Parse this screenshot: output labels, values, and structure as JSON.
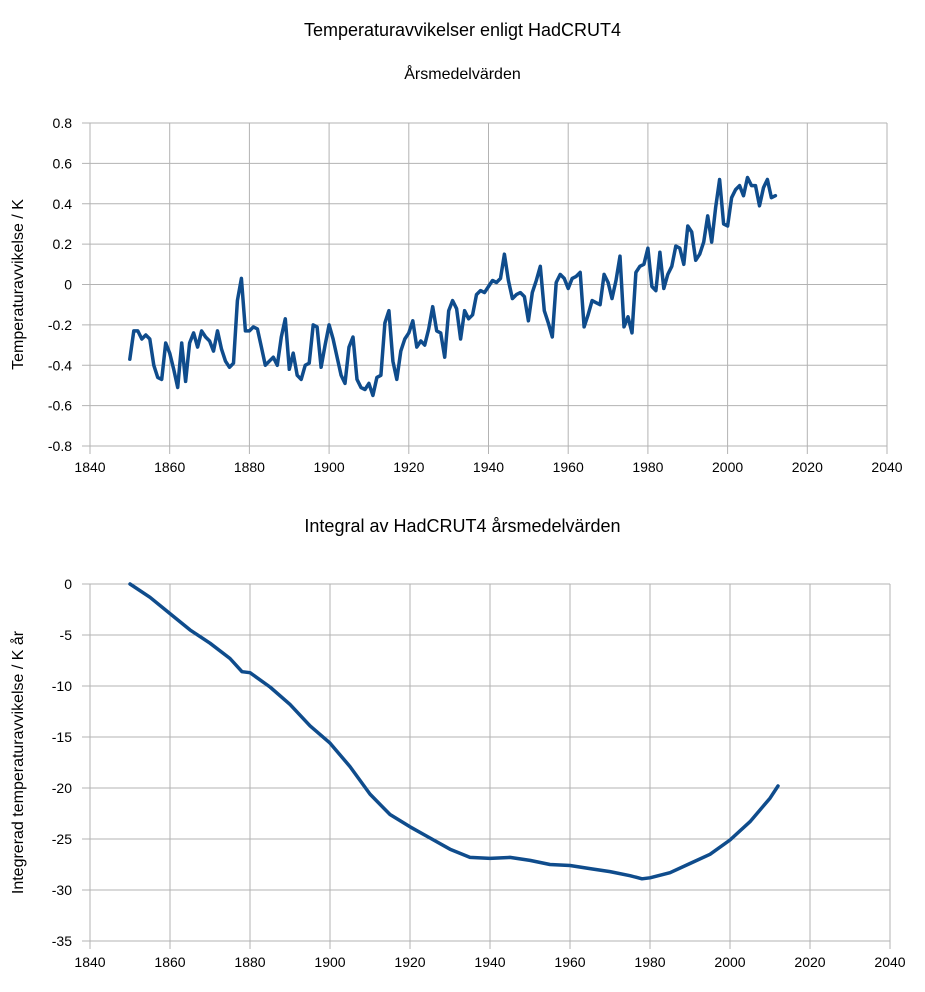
{
  "chart_data": [
    {
      "type": "line",
      "title": "Temperaturavvikelser enligt HadCRUT4",
      "subtitle": "Årsmedelvärden",
      "xlabel": "",
      "ylabel": "Temperaturavvikelse / K",
      "xlim": [
        1840,
        2040
      ],
      "ylim": [
        -0.8,
        0.8
      ],
      "xticks": [
        1840,
        1860,
        1880,
        1900,
        1920,
        1940,
        1960,
        1980,
        2000,
        2020,
        2040
      ],
      "yticks": [
        -0.8,
        -0.6,
        -0.4,
        -0.2,
        0,
        0.2,
        0.4,
        0.6,
        0.8
      ],
      "ytick_labels": [
        "-0.8",
        "-0.6",
        "-0.4",
        "-0.2",
        "0",
        "0.2",
        "0.4",
        "0.6",
        "0.8"
      ],
      "grid": true,
      "color": "#0f4c8c",
      "series": [
        {
          "x": [
            1850,
            1851,
            1852,
            1853,
            1854,
            1855,
            1856,
            1857,
            1858,
            1859,
            1860,
            1861,
            1862,
            1863,
            1864,
            1865,
            1866,
            1867,
            1868,
            1869,
            1870,
            1871,
            1872,
            1873,
            1874,
            1875,
            1876,
            1877,
            1878,
            1879,
            1880,
            1881,
            1882,
            1883,
            1884,
            1885,
            1886,
            1887,
            1888,
            1889,
            1890,
            1891,
            1892,
            1893,
            1894,
            1895,
            1896,
            1897,
            1898,
            1899,
            1900,
            1901,
            1902,
            1903,
            1904,
            1905,
            1906,
            1907,
            1908,
            1909,
            1910,
            1911,
            1912,
            1913,
            1914,
            1915,
            1916,
            1917,
            1918,
            1919,
            1920,
            1921,
            1922,
            1923,
            1924,
            1925,
            1926,
            1927,
            1928,
            1929,
            1930,
            1931,
            1932,
            1933,
            1934,
            1935,
            1936,
            1937,
            1938,
            1939,
            1940,
            1941,
            1942,
            1943,
            1944,
            1945,
            1946,
            1947,
            1948,
            1949,
            1950,
            1951,
            1952,
            1953,
            1954,
            1955,
            1956,
            1957,
            1958,
            1959,
            1960,
            1961,
            1962,
            1963,
            1964,
            1965,
            1966,
            1967,
            1968,
            1969,
            1970,
            1971,
            1972,
            1973,
            1974,
            1975,
            1976,
            1977,
            1978,
            1979,
            1980,
            1981,
            1982,
            1983,
            1984,
            1985,
            1986,
            1987,
            1988,
            1989,
            1990,
            1991,
            1992,
            1993,
            1994,
            1995,
            1996,
            1997,
            1998,
            1999,
            2000,
            2001,
            2002,
            2003,
            2004,
            2005,
            2006,
            2007,
            2008,
            2009,
            2010,
            2011,
            2012
          ],
          "y": [
            -0.37,
            -0.23,
            -0.23,
            -0.27,
            -0.25,
            -0.27,
            -0.4,
            -0.46,
            -0.47,
            -0.29,
            -0.34,
            -0.42,
            -0.51,
            -0.29,
            -0.48,
            -0.29,
            -0.24,
            -0.31,
            -0.23,
            -0.26,
            -0.28,
            -0.33,
            -0.23,
            -0.32,
            -0.38,
            -0.41,
            -0.39,
            -0.08,
            0.03,
            -0.23,
            -0.23,
            -0.21,
            -0.22,
            -0.31,
            -0.4,
            -0.38,
            -0.36,
            -0.4,
            -0.26,
            -0.17,
            -0.42,
            -0.34,
            -0.45,
            -0.47,
            -0.4,
            -0.39,
            -0.2,
            -0.21,
            -0.41,
            -0.3,
            -0.2,
            -0.27,
            -0.36,
            -0.45,
            -0.49,
            -0.31,
            -0.26,
            -0.47,
            -0.51,
            -0.52,
            -0.49,
            -0.55,
            -0.46,
            -0.45,
            -0.19,
            -0.13,
            -0.38,
            -0.47,
            -0.33,
            -0.27,
            -0.24,
            -0.18,
            -0.31,
            -0.28,
            -0.3,
            -0.22,
            -0.11,
            -0.23,
            -0.24,
            -0.36,
            -0.13,
            -0.08,
            -0.12,
            -0.27,
            -0.13,
            -0.17,
            -0.15,
            -0.05,
            -0.03,
            -0.04,
            -0.01,
            0.02,
            0.01,
            0.03,
            0.15,
            0.02,
            -0.07,
            -0.05,
            -0.04,
            -0.06,
            -0.18,
            -0.04,
            0.02,
            0.09,
            -0.13,
            -0.19,
            -0.26,
            0.01,
            0.05,
            0.03,
            -0.02,
            0.03,
            0.04,
            0.06,
            -0.21,
            -0.15,
            -0.08,
            -0.09,
            -0.1,
            0.05,
            0.01,
            -0.07,
            0.02,
            0.14,
            -0.21,
            -0.16,
            -0.24,
            0.06,
            0.09,
            0.1,
            0.18,
            -0.01,
            -0.03,
            0.16,
            -0.02,
            0.05,
            0.09,
            0.19,
            0.18,
            0.1,
            0.29,
            0.26,
            0.12,
            0.15,
            0.21,
            0.34,
            0.21,
            0.38,
            0.52,
            0.3,
            0.29,
            0.43,
            0.47,
            0.49,
            0.44,
            0.53,
            0.49,
            0.49,
            0.39,
            0.48,
            0.52,
            0.43,
            0.44
          ]
        }
      ]
    },
    {
      "type": "line",
      "title": "Integral av HadCRUT4 årsmedelvärden",
      "xlabel": "",
      "ylabel": "Integrerad temperaturavvikelse / K år",
      "xlim": [
        1840,
        2040
      ],
      "ylim": [
        -35,
        0
      ],
      "xticks": [
        1840,
        1860,
        1880,
        1900,
        1920,
        1940,
        1960,
        1980,
        2000,
        2020,
        2040
      ],
      "yticks": [
        -35,
        -30,
        -25,
        -20,
        -15,
        -10,
        -5,
        0
      ],
      "ytick_labels": [
        "-35",
        "-30",
        "-25",
        "-20",
        "-15",
        "-10",
        "-5",
        "0"
      ],
      "grid": true,
      "color": "#0f4c8c",
      "series": [
        {
          "x": [
            1850,
            1855,
            1860,
            1865,
            1870,
            1875,
            1878,
            1880,
            1885,
            1890,
            1895,
            1900,
            1905,
            1910,
            1915,
            1920,
            1925,
            1930,
            1935,
            1940,
            1945,
            1950,
            1955,
            1960,
            1965,
            1970,
            1975,
            1978,
            1980,
            1985,
            1990,
            1995,
            2000,
            2005,
            2010,
            2012
          ],
          "y": [
            0,
            -1.3,
            -2.9,
            -4.5,
            -5.8,
            -7.3,
            -8.6,
            -8.7,
            -10.1,
            -11.8,
            -13.9,
            -15.6,
            -17.9,
            -20.6,
            -22.6,
            -23.8,
            -24.9,
            -26.0,
            -26.8,
            -26.9,
            -26.8,
            -27.1,
            -27.5,
            -27.6,
            -27.9,
            -28.2,
            -28.6,
            -28.9,
            -28.8,
            -28.3,
            -27.4,
            -26.5,
            -25.1,
            -23.3,
            -21.0,
            -19.8
          ]
        }
      ]
    }
  ]
}
